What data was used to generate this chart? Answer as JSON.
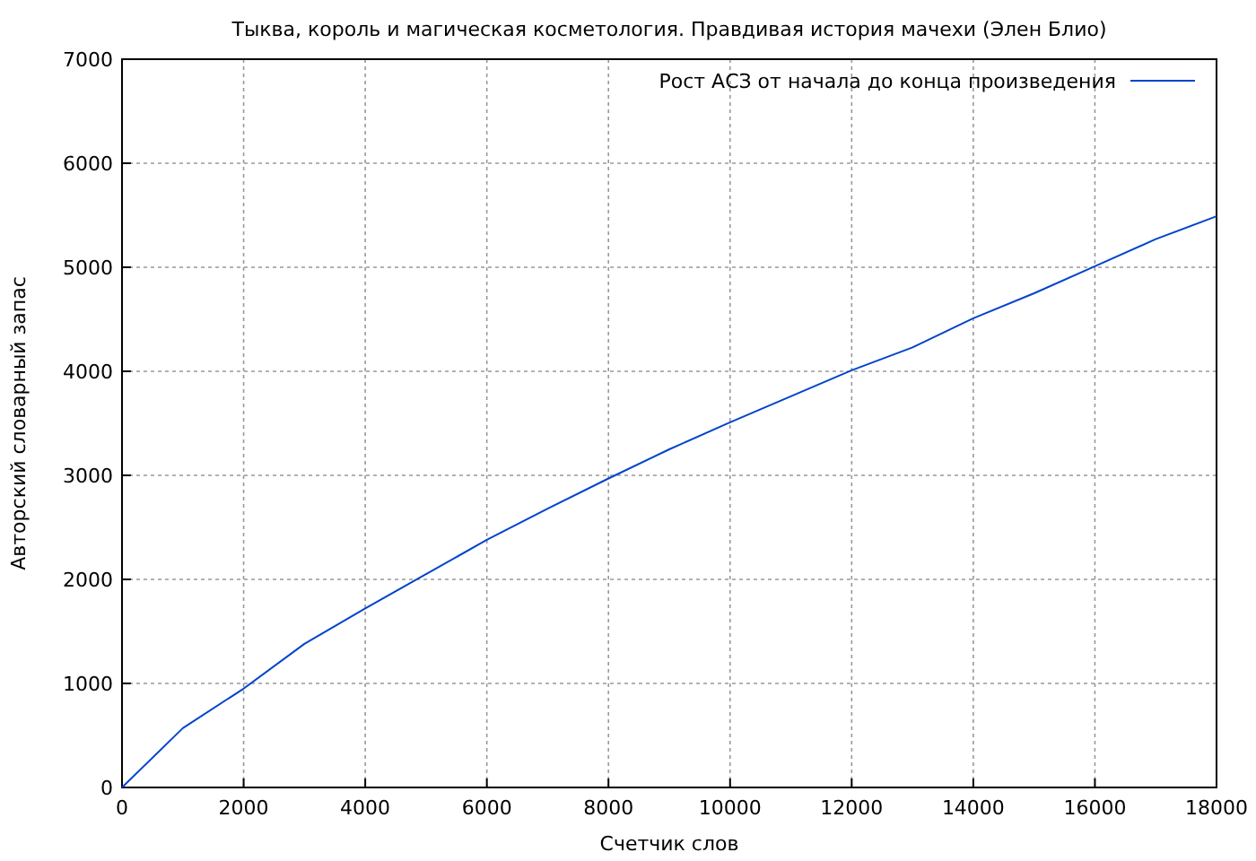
{
  "chart_data": {
    "type": "line",
    "title": "Тыква, король и магическая косметология. Правдивая история мачехи (Элен Блио)",
    "xlabel": "Счетчик слов",
    "ylabel": "Авторский словарный запас",
    "x": [
      0,
      1000,
      2000,
      3000,
      4000,
      5000,
      6000,
      7000,
      8000,
      9000,
      10000,
      11000,
      12000,
      13000,
      14000,
      15000,
      16000,
      17000,
      18000
    ],
    "series": [
      {
        "name": "Рост АСЗ от начала до конца произведения",
        "color": "#0044cc",
        "values": [
          0,
          570,
          950,
          1380,
          1720,
          2050,
          2380,
          2680,
          2970,
          3250,
          3510,
          3760,
          4010,
          4230,
          4510,
          4750,
          5010,
          5270,
          5490
        ]
      }
    ],
    "xlim": [
      0,
      18000
    ],
    "xticks": [
      0,
      2000,
      4000,
      6000,
      8000,
      10000,
      12000,
      14000,
      16000,
      18000
    ],
    "ylim": [
      0,
      7000
    ],
    "yticks": [
      0,
      1000,
      2000,
      3000,
      4000,
      5000,
      6000,
      7000
    ],
    "grid": true,
    "legend": "top right",
    "marker": "none",
    "line_style": "solid"
  }
}
